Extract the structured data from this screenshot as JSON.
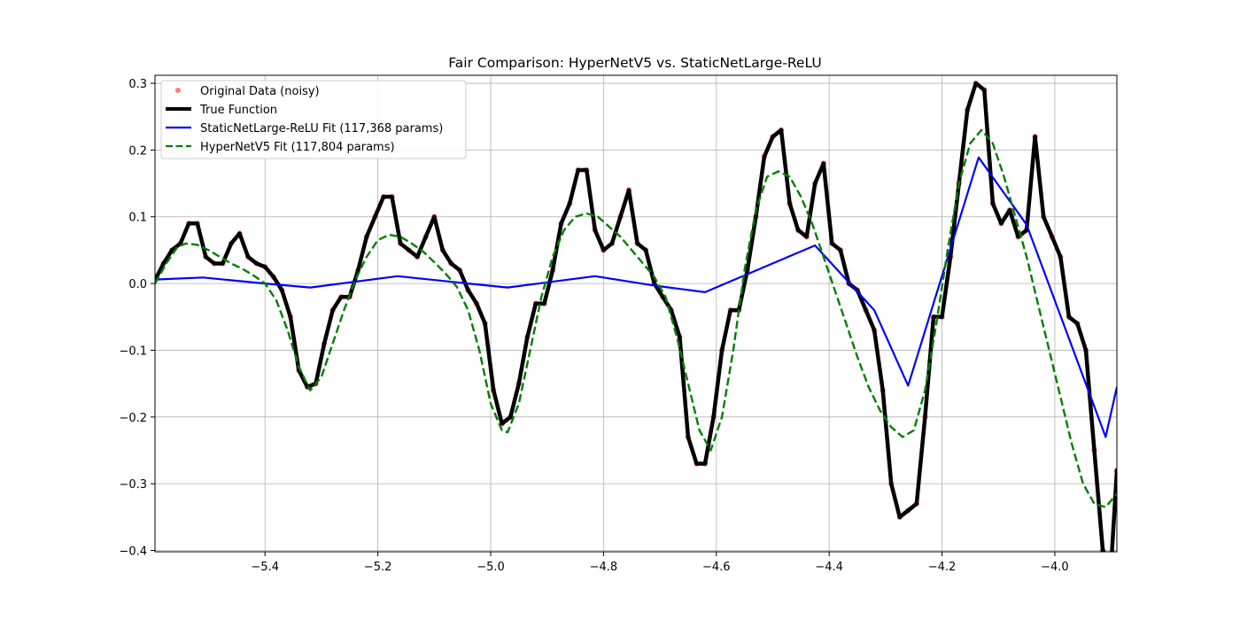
{
  "chart_data": {
    "type": "line",
    "title": "Fair Comparison: HyperNetV5 vs. StaticNetLarge-ReLU",
    "xlabel": "",
    "ylabel": "",
    "xlim": [
      -5.595,
      -3.89
    ],
    "ylim": [
      -0.402,
      0.312
    ],
    "xticks": [
      -5.4,
      -5.2,
      -5.0,
      -4.8,
      -4.6,
      -4.4,
      -4.2,
      -4.0
    ],
    "xtick_labels": [
      "−5.4",
      "−5.2",
      "−5.0",
      "−4.8",
      "−4.6",
      "−4.4",
      "−4.2",
      "−4.0"
    ],
    "yticks": [
      -0.4,
      -0.3,
      -0.2,
      -0.1,
      0.0,
      0.1,
      0.2,
      0.3
    ],
    "ytick_labels": [
      "−0.4",
      "−0.3",
      "−0.2",
      "−0.1",
      "0.0",
      "0.1",
      "0.2",
      "0.3"
    ],
    "grid": true,
    "legend_position": "top-left",
    "series": [
      {
        "name": "Original Data (noisy)",
        "style": "scatter",
        "color": "#ff4d4d",
        "x": [
          -5.595,
          -5.58,
          -5.565,
          -5.55,
          -5.535,
          -5.52,
          -5.505,
          -5.49,
          -5.475,
          -5.46,
          -5.445,
          -5.43,
          -5.415,
          -5.4,
          -5.385,
          -5.37,
          -5.355,
          -5.34,
          -5.325,
          -5.31,
          -5.295,
          -5.28,
          -5.265,
          -5.25,
          -5.235,
          -5.22,
          -5.205,
          -5.19,
          -5.175,
          -5.16,
          -5.145,
          -5.13,
          -5.115,
          -5.1,
          -5.085,
          -5.07,
          -5.055,
          -5.04,
          -5.025,
          -5.01,
          -4.995,
          -4.98,
          -4.965,
          -4.95,
          -4.935,
          -4.92,
          -4.905,
          -4.89,
          -4.875,
          -4.86,
          -4.845,
          -4.83,
          -4.815,
          -4.8,
          -4.785,
          -4.77,
          -4.755,
          -4.74,
          -4.725,
          -4.71,
          -4.695,
          -4.68,
          -4.665,
          -4.65,
          -4.635,
          -4.62,
          -4.605,
          -4.59,
          -4.575,
          -4.56,
          -4.545,
          -4.53,
          -4.515,
          -4.5,
          -4.485,
          -4.47,
          -4.455,
          -4.44,
          -4.425,
          -4.41,
          -4.395,
          -4.38,
          -4.365,
          -4.35,
          -4.335,
          -4.32,
          -4.305,
          -4.29,
          -4.275,
          -4.26,
          -4.245,
          -4.23,
          -4.215,
          -4.2,
          -4.185,
          -4.17,
          -4.155,
          -4.14,
          -4.125,
          -4.11,
          -4.095,
          -4.08,
          -4.065,
          -4.05,
          -4.035,
          -4.02,
          -4.005,
          -3.99,
          -3.975,
          -3.96,
          -3.945,
          -3.93,
          -3.915,
          -3.9,
          -3.89
        ],
        "y": [
          0.005,
          0.03,
          0.05,
          0.06,
          0.09,
          0.09,
          0.04,
          0.03,
          0.03,
          0.06,
          0.075,
          0.04,
          0.03,
          0.025,
          0.01,
          -0.01,
          -0.05,
          -0.13,
          -0.155,
          -0.15,
          -0.09,
          -0.04,
          -0.02,
          -0.02,
          0.02,
          0.07,
          0.1,
          0.13,
          0.13,
          0.06,
          0.05,
          0.04,
          0.07,
          0.1,
          0.05,
          0.03,
          0.02,
          -0.01,
          -0.03,
          -0.06,
          -0.16,
          -0.21,
          -0.2,
          -0.15,
          -0.08,
          -0.03,
          -0.03,
          0.02,
          0.09,
          0.12,
          0.17,
          0.17,
          0.08,
          0.05,
          0.06,
          0.1,
          0.14,
          0.06,
          0.05,
          0.0,
          -0.02,
          -0.04,
          -0.08,
          -0.23,
          -0.27,
          -0.27,
          -0.2,
          -0.1,
          -0.04,
          -0.04,
          0.02,
          0.1,
          0.19,
          0.22,
          0.23,
          0.12,
          0.08,
          0.07,
          0.15,
          0.18,
          0.06,
          0.05,
          0.0,
          -0.01,
          -0.04,
          -0.07,
          -0.16,
          -0.3,
          -0.35,
          -0.34,
          -0.33,
          -0.2,
          -0.05,
          -0.05,
          0.04,
          0.15,
          0.26,
          0.3,
          0.29,
          0.12,
          0.09,
          0.11,
          0.07,
          0.08,
          0.22,
          0.1,
          0.07,
          0.04,
          -0.05,
          -0.06,
          -0.1,
          -0.25,
          -0.4,
          -0.42,
          -0.28
        ]
      },
      {
        "name": "True Function",
        "style": "line",
        "color": "#000000",
        "x": [
          -5.595,
          -5.58,
          -5.565,
          -5.55,
          -5.535,
          -5.52,
          -5.505,
          -5.49,
          -5.475,
          -5.46,
          -5.445,
          -5.43,
          -5.415,
          -5.4,
          -5.385,
          -5.37,
          -5.355,
          -5.34,
          -5.325,
          -5.31,
          -5.295,
          -5.28,
          -5.265,
          -5.25,
          -5.235,
          -5.22,
          -5.205,
          -5.19,
          -5.175,
          -5.16,
          -5.145,
          -5.13,
          -5.115,
          -5.1,
          -5.085,
          -5.07,
          -5.055,
          -5.04,
          -5.025,
          -5.01,
          -4.995,
          -4.98,
          -4.965,
          -4.95,
          -4.935,
          -4.92,
          -4.905,
          -4.89,
          -4.875,
          -4.86,
          -4.845,
          -4.83,
          -4.815,
          -4.8,
          -4.785,
          -4.77,
          -4.755,
          -4.74,
          -4.725,
          -4.71,
          -4.695,
          -4.68,
          -4.665,
          -4.65,
          -4.635,
          -4.62,
          -4.605,
          -4.59,
          -4.575,
          -4.56,
          -4.545,
          -4.53,
          -4.515,
          -4.5,
          -4.485,
          -4.47,
          -4.455,
          -4.44,
          -4.425,
          -4.41,
          -4.395,
          -4.38,
          -4.365,
          -4.35,
          -4.335,
          -4.32,
          -4.305,
          -4.29,
          -4.275,
          -4.26,
          -4.245,
          -4.23,
          -4.215,
          -4.2,
          -4.185,
          -4.17,
          -4.155,
          -4.14,
          -4.125,
          -4.11,
          -4.095,
          -4.08,
          -4.065,
          -4.05,
          -4.035,
          -4.02,
          -4.005,
          -3.99,
          -3.975,
          -3.96,
          -3.945,
          -3.93,
          -3.915,
          -3.9,
          -3.89
        ],
        "y": [
          0.005,
          0.03,
          0.05,
          0.06,
          0.09,
          0.09,
          0.04,
          0.03,
          0.03,
          0.06,
          0.075,
          0.04,
          0.03,
          0.025,
          0.01,
          -0.01,
          -0.05,
          -0.13,
          -0.155,
          -0.15,
          -0.09,
          -0.04,
          -0.02,
          -0.02,
          0.02,
          0.07,
          0.1,
          0.13,
          0.13,
          0.06,
          0.05,
          0.04,
          0.07,
          0.1,
          0.05,
          0.03,
          0.02,
          -0.01,
          -0.03,
          -0.06,
          -0.16,
          -0.21,
          -0.2,
          -0.15,
          -0.08,
          -0.03,
          -0.03,
          0.02,
          0.09,
          0.12,
          0.17,
          0.17,
          0.08,
          0.05,
          0.06,
          0.1,
          0.14,
          0.06,
          0.05,
          0.0,
          -0.02,
          -0.04,
          -0.08,
          -0.23,
          -0.27,
          -0.27,
          -0.2,
          -0.1,
          -0.04,
          -0.04,
          0.02,
          0.1,
          0.19,
          0.22,
          0.23,
          0.12,
          0.08,
          0.07,
          0.15,
          0.18,
          0.06,
          0.05,
          0.0,
          -0.01,
          -0.04,
          -0.07,
          -0.16,
          -0.3,
          -0.35,
          -0.34,
          -0.33,
          -0.2,
          -0.05,
          -0.05,
          0.04,
          0.15,
          0.26,
          0.3,
          0.29,
          0.12,
          0.09,
          0.11,
          0.07,
          0.08,
          0.22,
          0.1,
          0.07,
          0.04,
          -0.05,
          -0.06,
          -0.1,
          -0.25,
          -0.4,
          -0.42,
          -0.28
        ]
      },
      {
        "name": "StaticNetLarge-ReLU Fit (117,368 params)",
        "style": "line",
        "color": "#0000ff",
        "x": [
          -5.595,
          -5.51,
          -5.4,
          -5.32,
          -5.165,
          -5.04,
          -4.97,
          -4.815,
          -4.71,
          -4.62,
          -4.425,
          -4.32,
          -4.26,
          -4.135,
          -4.05,
          -3.91,
          -3.89
        ],
        "y": [
          0.006,
          0.009,
          0.0,
          -0.006,
          0.011,
          0.0,
          -0.006,
          0.011,
          -0.003,
          -0.013,
          0.057,
          -0.04,
          -0.153,
          0.189,
          0.088,
          -0.23,
          -0.155
        ]
      },
      {
        "name": "HyperNetV5 Fit (117,804 params)",
        "style": "dashed",
        "color": "#008000",
        "x": [
          -5.595,
          -5.575,
          -5.555,
          -5.54,
          -5.52,
          -5.5,
          -5.48,
          -5.46,
          -5.44,
          -5.42,
          -5.4,
          -5.38,
          -5.36,
          -5.34,
          -5.32,
          -5.3,
          -5.28,
          -5.26,
          -5.24,
          -5.22,
          -5.2,
          -5.18,
          -5.16,
          -5.14,
          -5.12,
          -5.1,
          -5.08,
          -5.06,
          -5.04,
          -5.02,
          -5.0,
          -4.98,
          -4.97,
          -4.95,
          -4.93,
          -4.91,
          -4.89,
          -4.87,
          -4.85,
          -4.83,
          -4.81,
          -4.79,
          -4.77,
          -4.75,
          -4.73,
          -4.71,
          -4.69,
          -4.67,
          -4.65,
          -4.63,
          -4.61,
          -4.59,
          -4.57,
          -4.55,
          -4.53,
          -4.51,
          -4.49,
          -4.47,
          -4.45,
          -4.43,
          -4.41,
          -4.39,
          -4.37,
          -4.35,
          -4.33,
          -4.31,
          -4.29,
          -4.27,
          -4.25,
          -4.23,
          -4.21,
          -4.19,
          -4.17,
          -4.15,
          -4.13,
          -4.11,
          -4.09,
          -4.07,
          -4.05,
          -4.03,
          -4.01,
          -3.99,
          -3.97,
          -3.95,
          -3.93,
          -3.91,
          -3.89
        ],
        "y": [
          0.0,
          0.03,
          0.055,
          0.06,
          0.058,
          0.05,
          0.04,
          0.03,
          0.022,
          0.012,
          0.0,
          -0.025,
          -0.07,
          -0.125,
          -0.16,
          -0.14,
          -0.09,
          -0.04,
          0.005,
          0.04,
          0.065,
          0.073,
          0.07,
          0.06,
          0.048,
          0.032,
          0.015,
          -0.005,
          -0.04,
          -0.1,
          -0.18,
          -0.22,
          -0.223,
          -0.18,
          -0.1,
          -0.02,
          0.04,
          0.08,
          0.1,
          0.105,
          0.1,
          0.085,
          0.07,
          0.05,
          0.03,
          0.01,
          -0.02,
          -0.08,
          -0.15,
          -0.22,
          -0.25,
          -0.2,
          -0.1,
          0.02,
          0.11,
          0.16,
          0.168,
          0.16,
          0.13,
          0.09,
          0.04,
          -0.01,
          -0.06,
          -0.11,
          -0.155,
          -0.19,
          -0.215,
          -0.23,
          -0.22,
          -0.16,
          -0.06,
          0.05,
          0.15,
          0.21,
          0.23,
          0.21,
          0.16,
          0.1,
          0.04,
          -0.03,
          -0.1,
          -0.17,
          -0.24,
          -0.3,
          -0.33,
          -0.335,
          -0.315
        ]
      }
    ]
  }
}
